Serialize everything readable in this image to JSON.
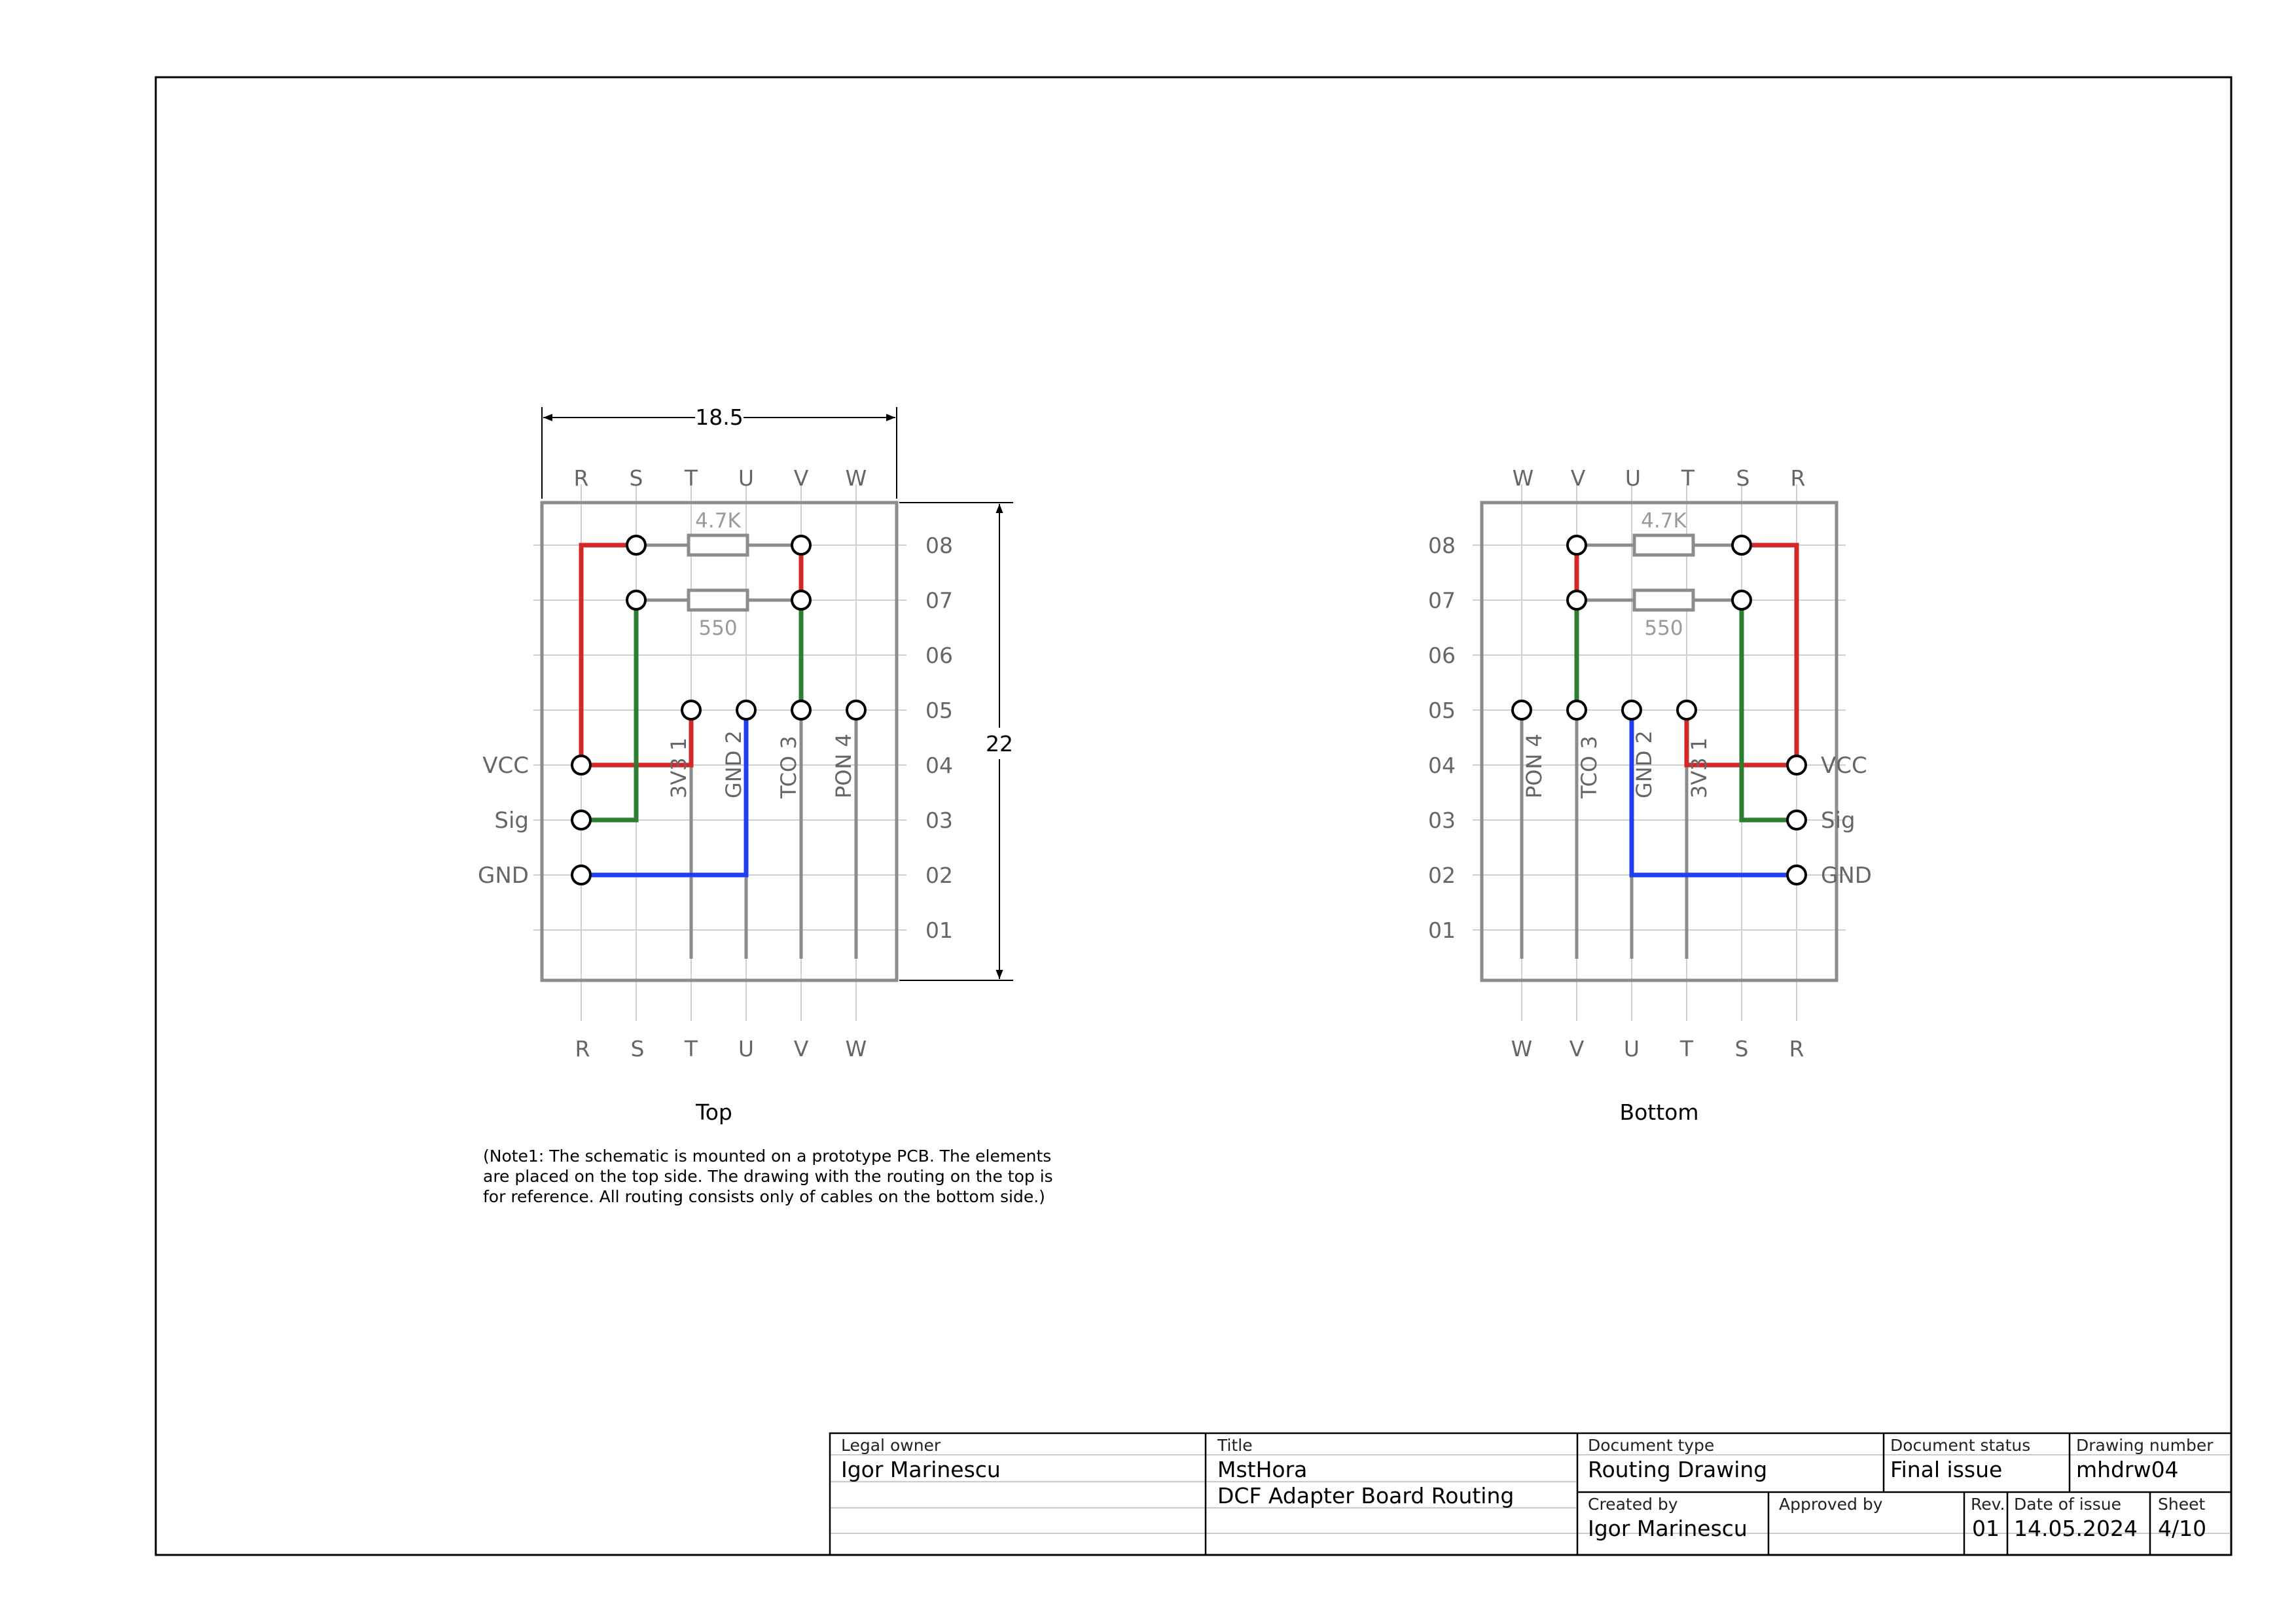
{
  "colors": {
    "vcc_trace": "#d42828",
    "signal_trace": "#2e7d32",
    "gnd_trace": "#1f3ff0",
    "component": "#8c8c8c",
    "grid": "#d0d0d0",
    "frame": "#000000"
  },
  "views": {
    "top": {
      "caption": "Top",
      "columns": [
        "R",
        "S",
        "T",
        "U",
        "V",
        "W"
      ],
      "rows": [
        "08",
        "07",
        "06",
        "05",
        "04",
        "03",
        "02",
        "01"
      ],
      "resistor_upper": "4.7K",
      "resistor_lower": "550",
      "connector_labels": [
        "VCC",
        "Sig",
        "GND"
      ],
      "pin_labels": [
        "3V3 1",
        "GND 2",
        "TCO 3",
        "PON 4"
      ],
      "dim_width": "18.5",
      "dim_height": "22"
    },
    "bottom": {
      "caption": "Bottom",
      "columns": [
        "W",
        "V",
        "U",
        "T",
        "S",
        "R"
      ],
      "rows": [
        "08",
        "07",
        "06",
        "05",
        "04",
        "03",
        "02",
        "01"
      ],
      "resistor_upper": "4.7K",
      "resistor_lower": "550",
      "connector_labels": [
        "VCC",
        "Sig",
        "GND"
      ],
      "pin_labels": [
        "PON 4",
        "TCO 3",
        "GND 2",
        "3V3 1"
      ]
    }
  },
  "note": {
    "lines": [
      "(Note1: The schematic is mounted on a prototype PCB. The elements",
      "are placed on the top side. The drawing with the routing on the top is",
      "for reference. All routing consists only of cables on the bottom side.)"
    ]
  },
  "title_block": {
    "legal_owner_label": "Legal owner",
    "legal_owner": "Igor Marinescu",
    "title_label": "Title",
    "title_line1": "MstHora",
    "title_line2": "DCF Adapter Board Routing",
    "document_type_label": "Document type",
    "document_type": "Routing Drawing",
    "document_status_label": "Document status",
    "document_status": "Final issue",
    "drawing_number_label": "Drawing number",
    "drawing_number": "mhdrw04",
    "created_by_label": "Created by",
    "created_by": "Igor Marinescu",
    "approved_by_label": "Approved by",
    "approved_by": "",
    "rev_label": "Rev.",
    "rev": "01",
    "date_label": "Date of issue",
    "date": "14.05.2024",
    "sheet_label": "Sheet",
    "sheet": "4/10"
  }
}
